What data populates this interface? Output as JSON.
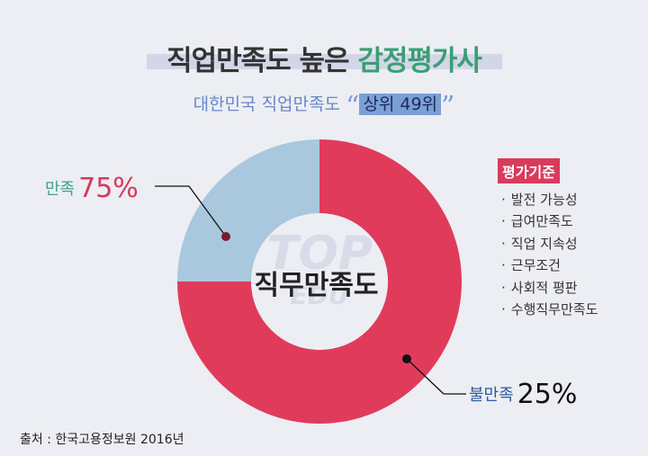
{
  "header": {
    "title_part1": "직업만족도 높은",
    "title_part2": "감정평가사",
    "subtitle_prefix": "대한민국 직업만족도",
    "open_quote": "“",
    "rank_label": "상위 49위",
    "close_quote": "”"
  },
  "chart_data": {
    "type": "pie",
    "categories": [
      "만족",
      "불만족"
    ],
    "values": [
      75,
      25
    ],
    "value_labels": [
      "75%",
      "25%"
    ],
    "colors": [
      "#e13b5b",
      "#a9c8dd"
    ],
    "center_label": "직무만족도"
  },
  "criteria": {
    "title": "평가기준",
    "bullet": "·",
    "items": [
      "발전 가능성",
      "급여만족도",
      "직업 지속성",
      "근무조건",
      "사회적 평판",
      "수행직무만족도"
    ]
  },
  "watermark": {
    "line1": "TOP",
    "line2": "EDU"
  },
  "source": "출처 : 한국고용정보원 2016년"
}
